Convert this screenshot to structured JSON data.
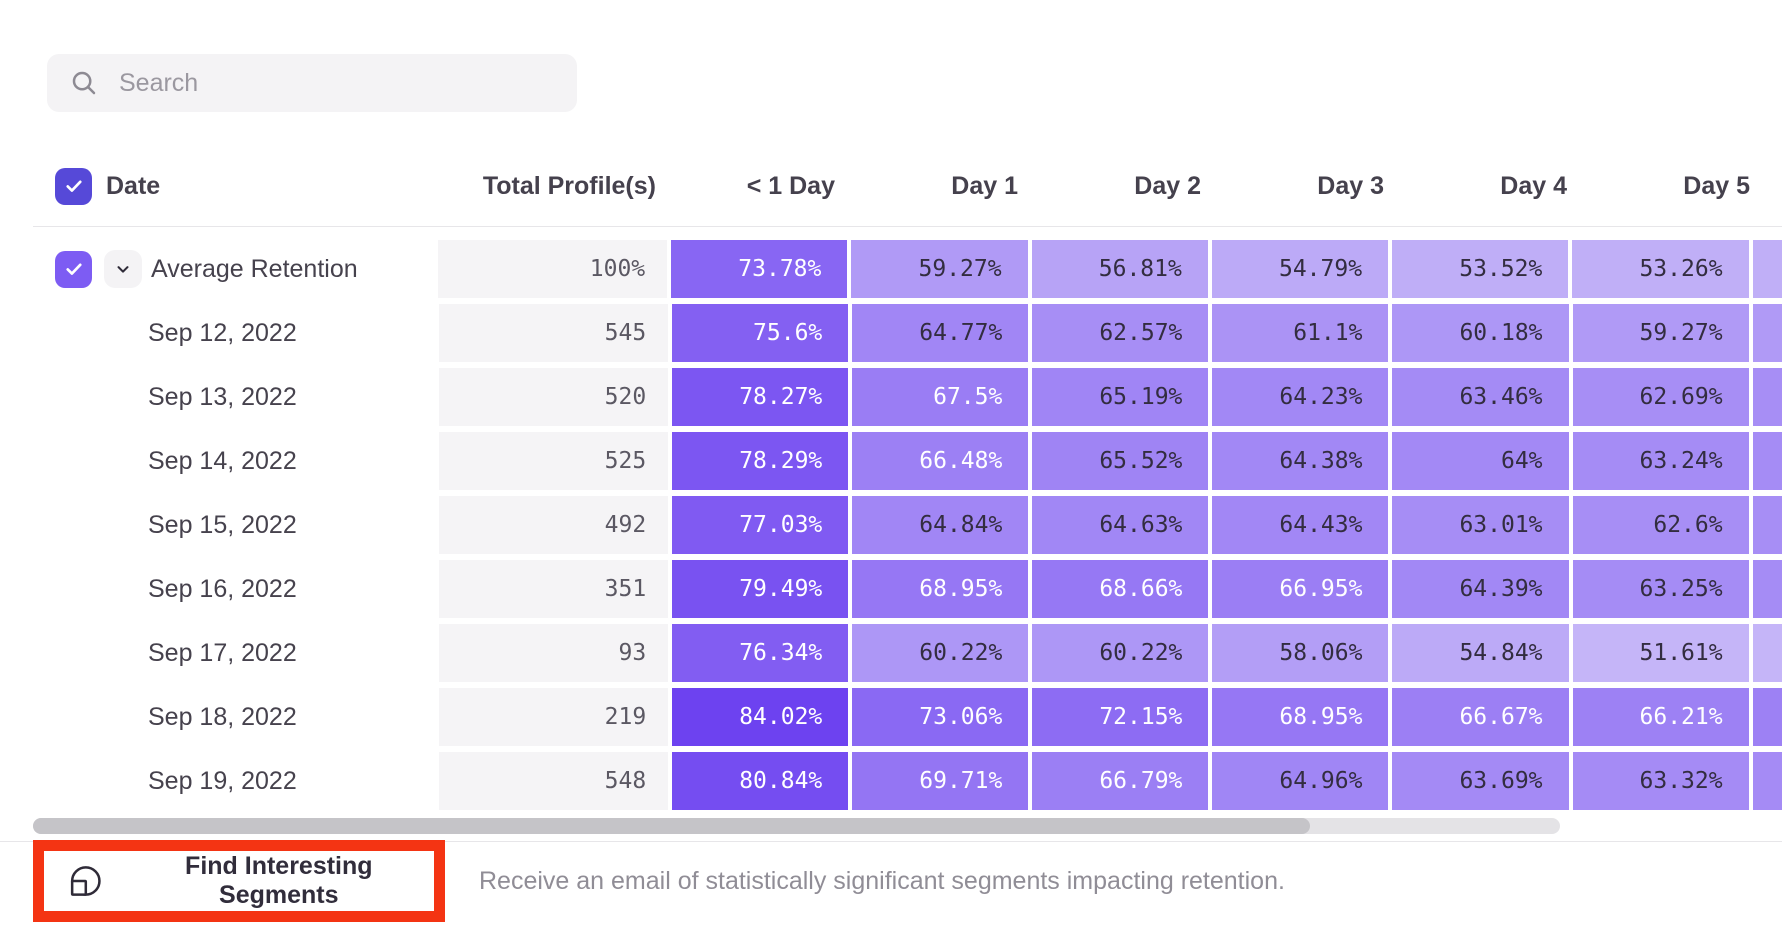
{
  "search": {
    "placeholder": "Search"
  },
  "table": {
    "columns": {
      "date": "Date",
      "total": "Total Profile(s)",
      "days": [
        "< 1 Day",
        "Day 1",
        "Day 2",
        "Day 3",
        "Day 4",
        "Day 5"
      ]
    },
    "average_row": {
      "label": "Average Retention",
      "total": "100%",
      "values": [
        "73.78%",
        "59.27%",
        "56.81%",
        "54.79%",
        "53.52%",
        "53.26%"
      ]
    },
    "rows": [
      {
        "label": "Sep 12, 2022",
        "total": "545",
        "values": [
          "75.6%",
          "64.77%",
          "62.57%",
          "61.1%",
          "60.18%",
          "59.27%"
        ]
      },
      {
        "label": "Sep 13, 2022",
        "total": "520",
        "values": [
          "78.27%",
          "67.5%",
          "65.19%",
          "64.23%",
          "63.46%",
          "62.69%"
        ]
      },
      {
        "label": "Sep 14, 2022",
        "total": "525",
        "values": [
          "78.29%",
          "66.48%",
          "65.52%",
          "64.38%",
          "64%",
          "63.24%"
        ]
      },
      {
        "label": "Sep 15, 2022",
        "total": "492",
        "values": [
          "77.03%",
          "64.84%",
          "64.63%",
          "64.43%",
          "63.01%",
          "62.6%"
        ]
      },
      {
        "label": "Sep 16, 2022",
        "total": "351",
        "values": [
          "79.49%",
          "68.95%",
          "68.66%",
          "66.95%",
          "64.39%",
          "63.25%"
        ]
      },
      {
        "label": "Sep 17, 2022",
        "total": "93",
        "values": [
          "76.34%",
          "60.22%",
          "60.22%",
          "58.06%",
          "54.84%",
          "51.61%"
        ]
      },
      {
        "label": "Sep 18, 2022",
        "total": "219",
        "values": [
          "84.02%",
          "73.06%",
          "72.15%",
          "68.95%",
          "66.67%",
          "66.21%"
        ]
      },
      {
        "label": "Sep 19, 2022",
        "total": "548",
        "values": [
          "80.84%",
          "69.71%",
          "66.79%",
          "64.96%",
          "63.69%",
          "63.32%"
        ]
      }
    ],
    "heat": {
      "min_value": 50,
      "max_value": 85,
      "min_color": "#c9bbf8",
      "max_color": "#6a3ef0",
      "white_text_threshold": 66
    }
  },
  "footer": {
    "button_label": "Find Interesting Segments",
    "description": "Receive an email of statistically significant segments impacting retention."
  },
  "colors": {
    "header_checkbox": "#5649d8",
    "row_checkbox": "#7d5cf3",
    "highlight_border": "#f43413"
  }
}
